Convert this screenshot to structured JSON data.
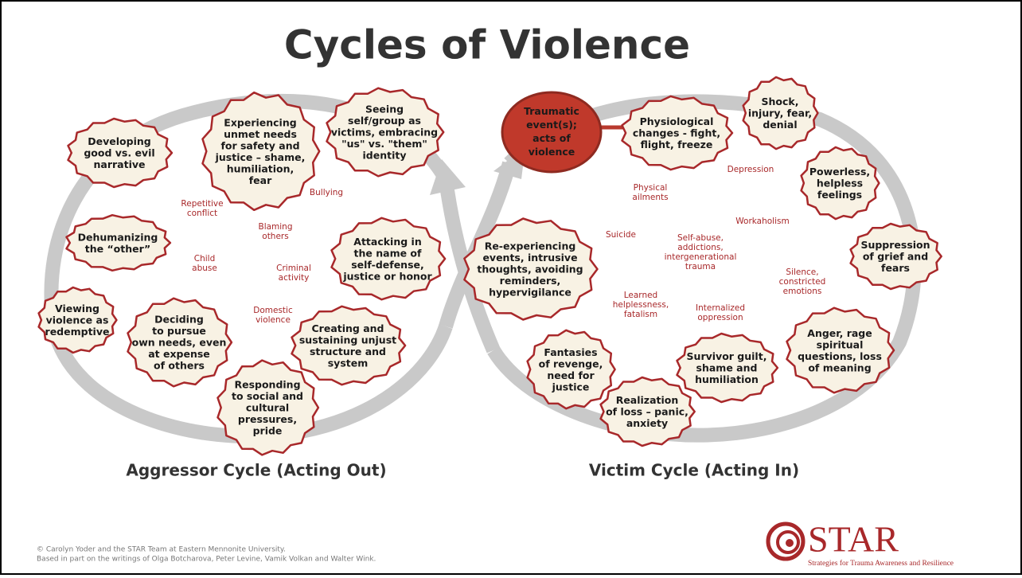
{
  "title": "Cycles of Violence",
  "aggressor": {
    "caption": "Aggressor Cycle (Acting Out)",
    "nodes": [
      {
        "lines": [
          "Developing",
          "good vs. evil",
          "narrative"
        ]
      },
      {
        "lines": [
          "Experiencing",
          "unmet needs",
          "for safety and",
          "justice – shame,",
          "humiliation,",
          "fear"
        ]
      },
      {
        "lines": [
          "Seeing",
          "self/group as",
          "victims, embracing",
          "\"us\" vs. \"them\"",
          "identity"
        ]
      },
      {
        "lines": [
          "Dehumanizing",
          "the “other”"
        ]
      },
      {
        "lines": [
          "Attacking in",
          "the name  of",
          "self-defense,",
          "justice or honor"
        ]
      },
      {
        "lines": [
          "Viewing",
          "violence as",
          "redemptive"
        ]
      },
      {
        "lines": [
          "Deciding",
          "to pursue",
          "own needs, even",
          "at expense",
          "of others"
        ]
      },
      {
        "lines": [
          "Creating and",
          "sustaining unjust",
          "structure and",
          "system"
        ]
      },
      {
        "lines": [
          "Responding",
          "to social and",
          "cultural",
          "pressures,",
          "pride"
        ]
      }
    ],
    "labels": [
      {
        "lines": [
          "Bullying"
        ]
      },
      {
        "lines": [
          "Repetitive",
          "conflict"
        ]
      },
      {
        "lines": [
          "Blaming",
          "others"
        ]
      },
      {
        "lines": [
          "Child",
          "abuse"
        ]
      },
      {
        "lines": [
          "Criminal",
          "activity"
        ]
      },
      {
        "lines": [
          "Domestic",
          "violence"
        ]
      }
    ]
  },
  "victim": {
    "caption": "Victim Cycle (Acting In)",
    "event": {
      "lines": [
        "Traumatic",
        "event(s);",
        "acts of",
        "violence"
      ]
    },
    "nodes": [
      {
        "lines": [
          "Physiological",
          "changes - fight,",
          "flight, freeze"
        ]
      },
      {
        "lines": [
          "Shock,",
          "injury, fear,",
          "denial"
        ]
      },
      {
        "lines": [
          "Powerless,",
          "helpless",
          "feelings"
        ]
      },
      {
        "lines": [
          "Suppression",
          "of grief and",
          "fears"
        ]
      },
      {
        "lines": [
          "Re-experiencing",
          "events, intrusive",
          "thoughts, avoiding",
          "reminders,",
          "hypervigilance"
        ]
      },
      {
        "lines": [
          "Anger, rage",
          "spiritual",
          "questions, loss",
          "of meaning"
        ]
      },
      {
        "lines": [
          "Fantasies",
          "of revenge,",
          "need for",
          "justice"
        ]
      },
      {
        "lines": [
          "Survivor guilt,",
          "shame and",
          "humiliation"
        ]
      },
      {
        "lines": [
          "Realization",
          "of loss – panic,",
          "anxiety"
        ]
      }
    ],
    "labels": [
      {
        "lines": [
          "Depression"
        ]
      },
      {
        "lines": [
          "Physical",
          "ailments"
        ]
      },
      {
        "lines": [
          "Workaholism"
        ]
      },
      {
        "lines": [
          "Suicide"
        ]
      },
      {
        "lines": [
          "Self-abuse,",
          "addictions,",
          "intergenerational",
          "trauma"
        ]
      },
      {
        "lines": [
          "Silence,",
          "constricted",
          "emotions"
        ]
      },
      {
        "lines": [
          "Learned",
          "helplessness,",
          "fatalism"
        ]
      },
      {
        "lines": [
          "Internalized",
          "oppression"
        ]
      }
    ]
  },
  "footer": {
    "lines": [
      "© Carolyn Yoder and the STAR Team at Eastern Mennonite University.",
      "Based in part on the writings of Olga Botcharova, Peter Levine, Vamik Volkan and Walter Wink."
    ]
  },
  "logo": {
    "name": "STAR",
    "tagline": "Strategies for Trauma Awareness and Resilience"
  }
}
